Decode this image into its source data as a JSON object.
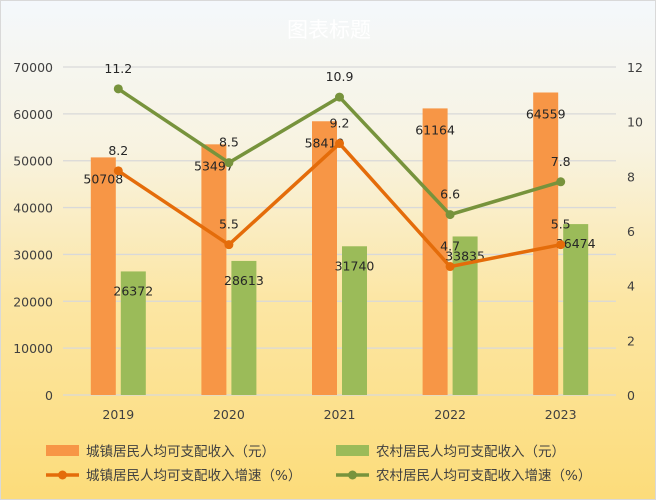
{
  "chart_data": {
    "type": "bar+line",
    "title": "图表标题",
    "categories": [
      "2019",
      "2020",
      "2021",
      "2022",
      "2023"
    ],
    "y_left": {
      "min": 0,
      "max": 70000,
      "step": 10000,
      "ticks": [
        "0",
        "10000",
        "20000",
        "30000",
        "40000",
        "50000",
        "60000",
        "70000"
      ]
    },
    "y_right": {
      "min": 0,
      "max": 12,
      "step": 2,
      "ticks": [
        "0",
        "2",
        "4",
        "6",
        "8",
        "10",
        "12"
      ]
    },
    "grid": true,
    "legend_position": "bottom",
    "series": [
      {
        "name": "城镇居民人均可支配收入（元）",
        "kind": "bar",
        "axis": "left",
        "color": "#f79646",
        "values": [
          50708,
          53497,
          58419,
          61164,
          64559
        ]
      },
      {
        "name": "农村居民人均可支配收入（元）",
        "kind": "bar",
        "axis": "left",
        "color": "#9bbb59",
        "values": [
          26372,
          28613,
          31740,
          33835,
          36474
        ]
      },
      {
        "name": "城镇居民人均可支配收入增速（%）",
        "kind": "line",
        "axis": "right",
        "color": "#e46c0a",
        "values": [
          8.2,
          5.5,
          9.2,
          4.7,
          5.5
        ]
      },
      {
        "name": "农村居民人均可支配收入增速（%）",
        "kind": "line",
        "axis": "right",
        "color": "#77933c",
        "values": [
          11.2,
          8.5,
          10.9,
          6.6,
          7.8
        ]
      }
    ]
  }
}
